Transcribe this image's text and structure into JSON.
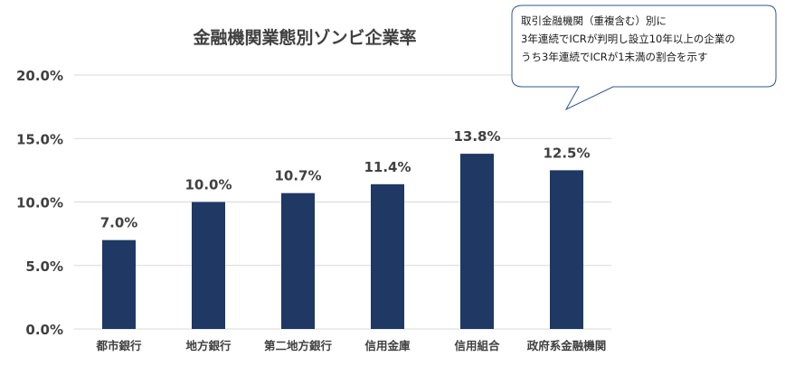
{
  "chart_data": {
    "type": "bar",
    "title": "金融機関業態別ゾンビ企業率",
    "categories": [
      "都市銀行",
      "地方銀行",
      "第二地方銀行",
      "信用金庫",
      "信用組合",
      "政府系金融機関"
    ],
    "values": [
      7.0,
      10.0,
      10.7,
      11.4,
      13.8,
      12.5
    ],
    "data_labels": [
      "7.0%",
      "10.0%",
      "10.7%",
      "11.4%",
      "13.8%",
      "12.5%"
    ],
    "ylim": [
      0,
      20
    ],
    "yticks": [
      0,
      5,
      10,
      15,
      20
    ],
    "ytick_labels": [
      "0.0%",
      "5.0%",
      "10.0%",
      "15.0%",
      "20.0%"
    ],
    "xlabel": "",
    "ylabel": "",
    "grid": true,
    "bar_color": "#1f3864",
    "grid_color": "#d9d9d9"
  },
  "callout": {
    "lines": [
      "取引金融機関（重複含む）別に",
      "3年連続でICRが判明し設立10年以上の企業の",
      "うち3年連続でICRが1未満の割合を示す"
    ]
  }
}
